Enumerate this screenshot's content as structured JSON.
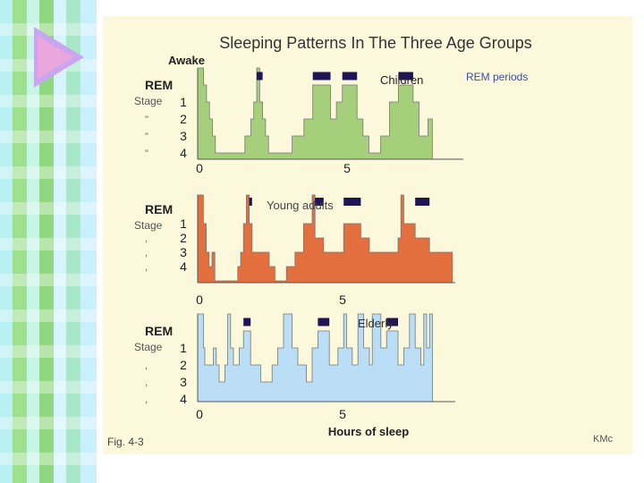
{
  "chart_data": {
    "type": "line",
    "title": "Sleeping Patterns In The Three Age Groups",
    "y_label_top": "Awake",
    "rem_label": "REM",
    "stage_label": "Stage",
    "ditto_marks": [
      "\"",
      "\"",
      "\""
    ],
    "dot_marks": [
      ",",
      ",",
      ","
    ],
    "stage_ticks": [
      "1",
      "2",
      "3",
      "4"
    ],
    "x_ticks": [
      "0",
      "5"
    ],
    "xlabel": "Hours of sleep",
    "legend_rem": "REM periods",
    "fig_label": "Fig. 4-3",
    "credit": "KMc",
    "colors": {
      "children": "#a6cf7c",
      "young": "#e46f3e",
      "elderly": "#b9def5",
      "rem": "#1f1455",
      "outline": "#777777"
    },
    "series": [
      {
        "name": "Children",
        "points": [
          [
            0,
            -1
          ],
          [
            0.2,
            -1
          ],
          [
            0.2,
            0
          ],
          [
            0.3,
            0
          ],
          [
            0.3,
            1
          ],
          [
            0.4,
            1
          ],
          [
            0.4,
            2
          ],
          [
            0.5,
            2
          ],
          [
            0.5,
            3
          ],
          [
            0.6,
            3
          ],
          [
            0.6,
            4
          ],
          [
            1.6,
            4
          ],
          [
            1.6,
            3
          ],
          [
            1.8,
            3
          ],
          [
            1.8,
            2
          ],
          [
            1.9,
            2
          ],
          [
            1.9,
            1
          ],
          [
            2.0,
            1
          ],
          [
            2.0,
            -1
          ],
          [
            2.1,
            -1
          ],
          [
            2.1,
            1
          ],
          [
            2.2,
            1
          ],
          [
            2.2,
            2
          ],
          [
            2.3,
            2
          ],
          [
            2.3,
            3
          ],
          [
            2.4,
            3
          ],
          [
            2.4,
            4
          ],
          [
            3.2,
            4
          ],
          [
            3.2,
            3
          ],
          [
            3.6,
            3
          ],
          [
            3.6,
            2
          ],
          [
            3.9,
            2
          ],
          [
            3.9,
            0
          ],
          [
            4.5,
            0
          ],
          [
            4.5,
            2
          ],
          [
            4.7,
            2
          ],
          [
            4.7,
            1
          ],
          [
            4.9,
            1
          ],
          [
            4.9,
            0
          ],
          [
            5.4,
            0
          ],
          [
            5.4,
            2
          ],
          [
            5.6,
            2
          ],
          [
            5.6,
            3
          ],
          [
            5.8,
            3
          ],
          [
            5.8,
            4
          ],
          [
            6.2,
            4
          ],
          [
            6.2,
            3
          ],
          [
            6.5,
            3
          ],
          [
            6.5,
            1
          ],
          [
            6.8,
            1
          ],
          [
            6.8,
            0
          ],
          [
            7.3,
            0
          ],
          [
            7.3,
            1
          ],
          [
            7.5,
            1
          ],
          [
            7.5,
            3
          ],
          [
            7.8,
            3
          ],
          [
            7.8,
            2
          ],
          [
            7.95,
            2
          ],
          [
            7.95,
            3
          ]
        ],
        "rem": [
          [
            2.0,
            2.2
          ],
          [
            3.9,
            4.5
          ],
          [
            4.9,
            5.4
          ],
          [
            6.8,
            7.3
          ]
        ]
      },
      {
        "name": "Young adults",
        "points": [
          [
            0,
            -1
          ],
          [
            0.2,
            -1
          ],
          [
            0.2,
            1
          ],
          [
            0.3,
            1
          ],
          [
            0.3,
            3
          ],
          [
            0.4,
            3
          ],
          [
            0.4,
            4
          ],
          [
            0.5,
            4
          ],
          [
            0.5,
            3
          ],
          [
            0.6,
            3
          ],
          [
            0.6,
            5
          ],
          [
            1.4,
            5
          ],
          [
            1.4,
            4
          ],
          [
            1.5,
            4
          ],
          [
            1.5,
            3
          ],
          [
            1.6,
            3
          ],
          [
            1.6,
            1
          ],
          [
            1.7,
            1
          ],
          [
            1.7,
            -1
          ],
          [
            1.8,
            -1
          ],
          [
            1.8,
            1
          ],
          [
            1.9,
            1
          ],
          [
            1.9,
            3
          ],
          [
            2.5,
            3
          ],
          [
            2.5,
            4
          ],
          [
            2.7,
            4
          ],
          [
            2.7,
            5
          ],
          [
            3.1,
            5
          ],
          [
            3.1,
            4
          ],
          [
            3.4,
            4
          ],
          [
            3.4,
            3
          ],
          [
            3.7,
            3
          ],
          [
            3.7,
            1
          ],
          [
            4.0,
            1
          ],
          [
            4.0,
            -1
          ],
          [
            4.1,
            -1
          ],
          [
            4.1,
            2
          ],
          [
            4.4,
            2
          ],
          [
            4.4,
            3
          ],
          [
            5.1,
            3
          ],
          [
            5.1,
            1
          ],
          [
            5.7,
            1
          ],
          [
            5.7,
            2
          ],
          [
            6.0,
            2
          ],
          [
            6.0,
            3
          ],
          [
            7.0,
            3
          ],
          [
            7.0,
            2
          ],
          [
            7.1,
            2
          ],
          [
            7.1,
            -1
          ],
          [
            7.2,
            -1
          ],
          [
            7.2,
            1
          ],
          [
            7.6,
            1
          ],
          [
            7.6,
            2
          ],
          [
            8.1,
            2
          ],
          [
            8.1,
            3
          ],
          [
            8.9,
            3
          ],
          [
            8.9,
            4
          ]
        ],
        "rem": [
          [
            1.8,
            1.9
          ],
          [
            4.1,
            4.4
          ],
          [
            5.1,
            5.7
          ],
          [
            7.6,
            8.1
          ]
        ]
      },
      {
        "name": "Elderly",
        "points": [
          [
            0,
            -1
          ],
          [
            0.2,
            -1
          ],
          [
            0.2,
            1
          ],
          [
            0.25,
            1
          ],
          [
            0.25,
            2
          ],
          [
            0.55,
            2
          ],
          [
            0.55,
            1
          ],
          [
            0.65,
            1
          ],
          [
            0.65,
            2
          ],
          [
            0.75,
            2
          ],
          [
            0.75,
            3
          ],
          [
            0.95,
            3
          ],
          [
            0.95,
            2
          ],
          [
            1.05,
            2
          ],
          [
            1.05,
            -1
          ],
          [
            1.15,
            -1
          ],
          [
            1.15,
            1
          ],
          [
            1.25,
            1
          ],
          [
            1.25,
            2
          ],
          [
            1.45,
            2
          ],
          [
            1.45,
            1
          ],
          [
            1.6,
            1
          ],
          [
            1.6,
            0
          ],
          [
            1.85,
            0
          ],
          [
            1.85,
            2
          ],
          [
            2.2,
            2
          ],
          [
            2.2,
            3
          ],
          [
            2.6,
            3
          ],
          [
            2.6,
            2
          ],
          [
            2.8,
            2
          ],
          [
            2.8,
            1
          ],
          [
            3.0,
            1
          ],
          [
            3.0,
            -1
          ],
          [
            3.3,
            -1
          ],
          [
            3.3,
            1
          ],
          [
            3.5,
            1
          ],
          [
            3.5,
            2
          ],
          [
            3.8,
            2
          ],
          [
            3.8,
            3
          ],
          [
            4.0,
            3
          ],
          [
            4.0,
            1
          ],
          [
            4.2,
            1
          ],
          [
            4.2,
            0
          ],
          [
            4.6,
            0
          ],
          [
            4.6,
            2
          ],
          [
            4.9,
            2
          ],
          [
            4.9,
            1
          ],
          [
            5.1,
            1
          ],
          [
            5.1,
            -1
          ],
          [
            5.2,
            -1
          ],
          [
            5.2,
            1
          ],
          [
            5.4,
            1
          ],
          [
            5.4,
            2
          ],
          [
            5.6,
            2
          ],
          [
            5.6,
            -1
          ],
          [
            5.8,
            -1
          ],
          [
            5.8,
            1
          ],
          [
            6.0,
            1
          ],
          [
            6.0,
            2
          ],
          [
            6.1,
            2
          ],
          [
            6.1,
            -1
          ],
          [
            6.4,
            -1
          ],
          [
            6.4,
            1
          ],
          [
            6.6,
            1
          ],
          [
            6.6,
            0
          ],
          [
            7.0,
            0
          ],
          [
            7.0,
            2
          ],
          [
            7.2,
            2
          ],
          [
            7.2,
            1
          ],
          [
            7.4,
            1
          ],
          [
            7.4,
            -1
          ],
          [
            7.6,
            -1
          ],
          [
            7.6,
            1
          ],
          [
            7.8,
            1
          ],
          [
            7.8,
            2
          ],
          [
            7.9,
            2
          ],
          [
            7.9,
            -1
          ],
          [
            8.0,
            -1
          ],
          [
            8.0,
            1
          ],
          [
            8.1,
            1
          ],
          [
            8.1,
            -1
          ],
          [
            8.2,
            -1
          ],
          [
            8.2,
            4
          ]
        ],
        "rem": [
          [
            1.6,
            1.85
          ],
          [
            4.2,
            4.6
          ],
          [
            6.6,
            7.0
          ]
        ]
      }
    ]
  }
}
